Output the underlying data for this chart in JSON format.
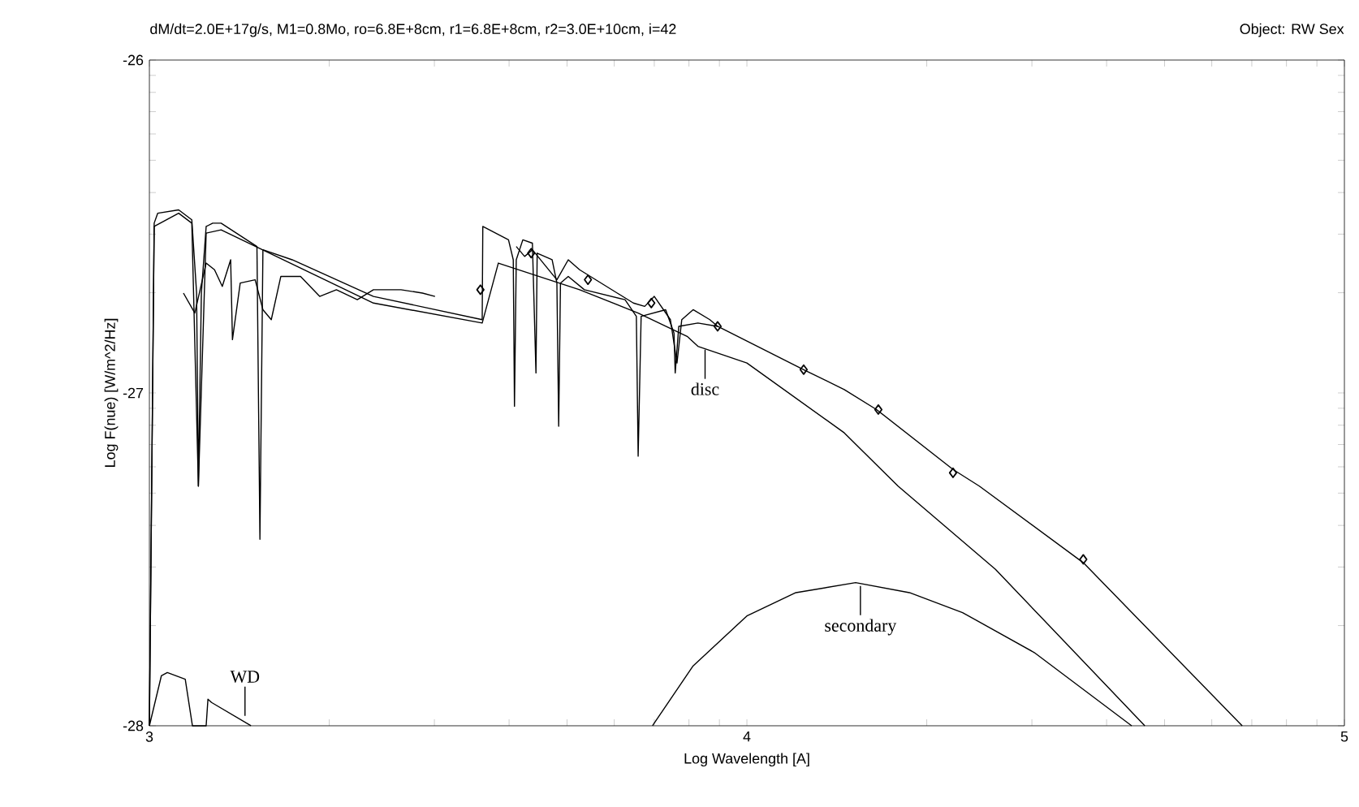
{
  "chart_data": {
    "type": "line",
    "title": "dM/dt=2.0E+17g/s, M1=0.8Mo, ro=6.8E+8cm, r1=6.8E+8cm, r2=3.0E+10cm, i=42",
    "subtitle": "Object: RW Sex",
    "xlabel": "Log Wavelength [A]",
    "ylabel": "Log F(nue) [W/m^2/Hz]",
    "xlim": [
      3,
      5
    ],
    "ylim": [
      -28,
      -26
    ],
    "xticks": [
      3,
      {
        "value": 3.301,
        "label": null
      },
      {
        "value": 3.477,
        "label": null
      },
      {
        "value": 3.602,
        "label": null
      },
      {
        "value": 3.699,
        "label": null
      },
      {
        "value": 3.778,
        "label": null
      },
      {
        "value": 3.845,
        "label": null
      },
      {
        "value": 3.903,
        "label": null
      },
      {
        "value": 3.954,
        "label": null
      },
      4,
      {
        "value": 4.301,
        "label": null
      },
      {
        "value": 4.477,
        "label": null
      },
      {
        "value": 4.602,
        "label": null
      },
      {
        "value": 4.699,
        "label": null
      },
      {
        "value": 4.778,
        "label": null
      },
      {
        "value": 4.845,
        "label": null
      },
      {
        "value": 4.903,
        "label": null
      },
      {
        "value": 4.954,
        "label": null
      },
      5
    ],
    "yticks": [
      -28,
      {
        "value": -27.699,
        "label": null
      },
      {
        "value": -27.523,
        "label": null
      },
      {
        "value": -27.398,
        "label": null
      },
      {
        "value": -27.301,
        "label": null
      },
      {
        "value": -27.222,
        "label": null
      },
      {
        "value": -27.155,
        "label": null
      },
      {
        "value": -27.097,
        "label": null
      },
      {
        "value": -27.046,
        "label": null
      },
      -27,
      {
        "value": -26.699,
        "label": null
      },
      {
        "value": -26.523,
        "label": null
      },
      {
        "value": -26.398,
        "label": null
      },
      {
        "value": -26.301,
        "label": null
      },
      {
        "value": -26.222,
        "label": null
      },
      {
        "value": -26.155,
        "label": null
      },
      {
        "value": -26.097,
        "label": null
      },
      {
        "value": -26.046,
        "label": null
      },
      -26
    ],
    "marker": "none",
    "line_style": "solid",
    "series": [
      {
        "color": "#000000",
        "x": [
          3.0,
          3.008,
          3.014,
          3.049,
          3.071,
          3.079,
          3.082,
          3.087,
          3.095,
          3.106,
          3.12,
          3.18,
          3.185,
          3.19,
          3.239,
          3.375,
          3.557,
          3.558,
          3.601,
          3.609,
          3.611,
          3.614,
          3.625,
          3.641,
          3.647,
          3.649,
          3.674,
          3.682,
          3.685,
          3.688,
          3.701,
          3.728,
          3.796,
          3.815,
          3.818,
          3.823,
          3.864,
          3.878,
          3.88,
          3.886,
          3.918,
          3.951,
          4.095,
          4.163,
          4.217,
          4.345,
          4.389,
          4.563,
          4.829
        ],
        "values": [
          -28.0,
          -26.49,
          -26.46,
          -26.45,
          -26.48,
          -26.7,
          -27.28,
          -26.7,
          -26.5,
          -26.49,
          -26.49,
          -26.56,
          -27.44,
          -26.57,
          -26.6,
          -26.71,
          -26.78,
          -26.5,
          -26.54,
          -26.6,
          -27.04,
          -26.6,
          -26.54,
          -26.55,
          -26.94,
          -26.58,
          -26.6,
          -26.67,
          -27.1,
          -26.67,
          -26.65,
          -26.69,
          -26.72,
          -26.77,
          -27.19,
          -26.77,
          -26.75,
          -26.82,
          -26.94,
          -26.8,
          -26.79,
          -26.8,
          -26.93,
          -26.99,
          -27.05,
          -27.23,
          -27.28,
          -27.51,
          -28.0
        ]
      },
      {
        "color": "#000000",
        "x": [
          3.0,
          3.008,
          3.049,
          3.071,
          3.082,
          3.095,
          3.12,
          3.375,
          3.557,
          3.584,
          3.72,
          3.818,
          3.9,
          3.918,
          4.0,
          4.163,
          4.253,
          4.416,
          4.666
        ],
        "values": [
          -28.0,
          -26.5,
          -26.46,
          -26.49,
          -27.28,
          -26.52,
          -26.51,
          -26.73,
          -26.79,
          -26.61,
          -26.69,
          -26.76,
          -26.83,
          -26.86,
          -26.91,
          -27.12,
          -27.28,
          -27.53,
          -28.0
        ]
      },
      {
        "color": "#000000",
        "x": [
          3.0,
          3.02,
          3.03,
          3.06,
          3.072,
          3.095,
          3.098,
          3.104,
          3.17
        ],
        "values": [
          -28.0,
          -27.85,
          -27.84,
          -27.86,
          -28.0,
          -28.0,
          -27.92,
          -27.93,
          -28.0
        ]
      },
      {
        "color": "#000000",
        "x": [
          3.842,
          3.91,
          4.0,
          4.082,
          4.182,
          4.272,
          4.361,
          4.481,
          4.644
        ],
        "values": [
          -28.0,
          -27.82,
          -27.67,
          -27.6,
          -27.57,
          -27.6,
          -27.66,
          -27.78,
          -28.0
        ]
      },
      {
        "color": "#000000",
        "x": [
          3.057,
          3.076,
          3.095,
          3.109,
          3.122,
          3.136,
          3.139,
          3.152,
          3.177,
          3.19,
          3.204,
          3.22,
          3.253,
          3.285,
          3.313,
          3.348,
          3.375,
          3.421,
          3.457,
          3.478
        ],
        "values": [
          -26.7,
          -26.76,
          -26.61,
          -26.63,
          -26.68,
          -26.6,
          -26.84,
          -26.67,
          -26.66,
          -26.75,
          -26.78,
          -26.65,
          -26.65,
          -26.71,
          -26.69,
          -26.72,
          -26.69,
          -26.69,
          -26.7,
          -26.71
        ]
      },
      {
        "color": "#000000",
        "x": [
          3.614,
          3.628,
          3.641,
          3.682,
          3.701,
          3.72,
          3.783,
          3.81,
          3.829,
          3.845,
          3.872,
          3.883,
          3.891,
          3.91,
          3.938,
          3.951
        ],
        "values": [
          -26.56,
          -26.59,
          -26.57,
          -26.66,
          -26.6,
          -26.63,
          -26.7,
          -26.73,
          -26.74,
          -26.71,
          -26.78,
          -26.91,
          -26.78,
          -26.75,
          -26.78,
          -26.8
        ]
      },
      {
        "type": "scatter",
        "marker": "diamond",
        "color": "#000000",
        "x": [
          3.554,
          3.639,
          3.734,
          3.84,
          3.951,
          4.095,
          4.22,
          4.345,
          4.563
        ],
        "values": [
          -26.69,
          -26.58,
          -26.66,
          -26.73,
          -26.8,
          -26.93,
          -27.05,
          -27.24,
          -27.5
        ]
      }
    ],
    "annotations": [
      {
        "text": "WD",
        "x": 3.16,
        "y": -27.97
      },
      {
        "text": "disc",
        "x": 3.93,
        "y": -26.87
      },
      {
        "text": "secondary",
        "x": 4.19,
        "y": -27.58
      }
    ]
  }
}
